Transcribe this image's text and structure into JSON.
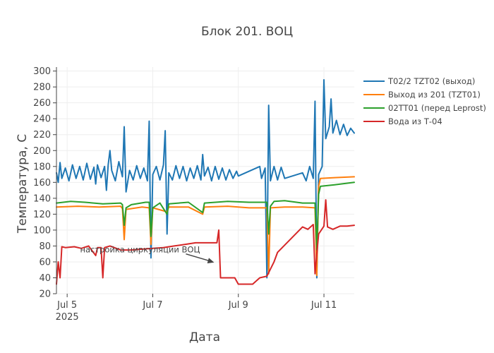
{
  "chart_data": {
    "type": "line",
    "title": "Блок 201. ВОЦ",
    "xlabel": "Дата",
    "ylabel": "Температура, С",
    "xlim": [
      "2025-07-04 18:00",
      "2025-07-11 17:00"
    ],
    "ylim": [
      20,
      305
    ],
    "grid": true,
    "legend_position": "right",
    "x_ticks": [
      {
        "at": "2025-07-05",
        "label": "Jul 5",
        "sublabel": "2025"
      },
      {
        "at": "2025-07-07",
        "label": "Jul 7",
        "sublabel": ""
      },
      {
        "at": "2025-07-09",
        "label": "Jul 9",
        "sublabel": ""
      },
      {
        "at": "2025-07-11",
        "label": "Jul 11",
        "sublabel": ""
      }
    ],
    "y_ticks": [
      20,
      40,
      60,
      80,
      100,
      120,
      140,
      160,
      180,
      200,
      220,
      240,
      260,
      280,
      300
    ],
    "y_tick_labels": [
      "20",
      "40",
      "60",
      "80",
      "100",
      "120",
      "140",
      "160",
      "180",
      "200",
      "220",
      "240",
      "260",
      "280",
      "300"
    ],
    "series": [
      {
        "name": "T02/2 TZT02 (выход)",
        "color": "#1f77b4",
        "points": [
          [
            "2025-07-04 18:00",
            172
          ],
          [
            "2025-07-04 19:00",
            160
          ],
          [
            "2025-07-04 20:00",
            185
          ],
          [
            "2025-07-04 21:00",
            165
          ],
          [
            "2025-07-04 23:00",
            178
          ],
          [
            "2025-07-05 01:00",
            162
          ],
          [
            "2025-07-05 03:00",
            182
          ],
          [
            "2025-07-05 05:00",
            165
          ],
          [
            "2025-07-05 07:00",
            180
          ],
          [
            "2025-07-05 09:00",
            163
          ],
          [
            "2025-07-05 11:00",
            184
          ],
          [
            "2025-07-05 13:00",
            164
          ],
          [
            "2025-07-05 15:00",
            179
          ],
          [
            "2025-07-05 16:00",
            158
          ],
          [
            "2025-07-05 17:00",
            182
          ],
          [
            "2025-07-05 19:00",
            166
          ],
          [
            "2025-07-05 21:00",
            180
          ],
          [
            "2025-07-05 22:00",
            150
          ],
          [
            "2025-07-05 23:00",
            182
          ],
          [
            "2025-07-06 00:00",
            200
          ],
          [
            "2025-07-06 01:00",
            175
          ],
          [
            "2025-07-06 03:00",
            162
          ],
          [
            "2025-07-06 05:00",
            186
          ],
          [
            "2025-07-06 07:00",
            167
          ],
          [
            "2025-07-06 08:00",
            230
          ],
          [
            "2025-07-06 09:00",
            148
          ],
          [
            "2025-07-06 11:00",
            175
          ],
          [
            "2025-07-06 13:00",
            163
          ],
          [
            "2025-07-06 15:00",
            181
          ],
          [
            "2025-07-06 17:00",
            165
          ],
          [
            "2025-07-06 19:00",
            178
          ],
          [
            "2025-07-06 21:00",
            162
          ],
          [
            "2025-07-06 22:00",
            237
          ],
          [
            "2025-07-06 23:00",
            65
          ],
          [
            "2025-07-07 00:00",
            170
          ],
          [
            "2025-07-07 02:00",
            180
          ],
          [
            "2025-07-07 04:00",
            163
          ],
          [
            "2025-07-07 06:00",
            182
          ],
          [
            "2025-07-07 07:00",
            225
          ],
          [
            "2025-07-07 08:00",
            95
          ],
          [
            "2025-07-07 09:00",
            172
          ],
          [
            "2025-07-07 11:00",
            163
          ],
          [
            "2025-07-07 13:00",
            181
          ],
          [
            "2025-07-07 15:00",
            165
          ],
          [
            "2025-07-07 17:00",
            180
          ],
          [
            "2025-07-07 19:00",
            162
          ],
          [
            "2025-07-07 21:00",
            178
          ],
          [
            "2025-07-07 23:00",
            165
          ],
          [
            "2025-07-08 01:00",
            181
          ],
          [
            "2025-07-08 03:00",
            163
          ],
          [
            "2025-07-08 04:00",
            195
          ],
          [
            "2025-07-08 05:00",
            168
          ],
          [
            "2025-07-08 07:00",
            179
          ],
          [
            "2025-07-08 09:00",
            162
          ],
          [
            "2025-07-08 11:00",
            180
          ],
          [
            "2025-07-08 13:00",
            164
          ],
          [
            "2025-07-08 15:00",
            178
          ],
          [
            "2025-07-08 17:00",
            163
          ],
          [
            "2025-07-08 19:00",
            176
          ],
          [
            "2025-07-08 21:00",
            165
          ],
          [
            "2025-07-08 23:00",
            174
          ],
          [
            "2025-07-09 00:00",
            168
          ],
          [
            "2025-07-09 12:00",
            180
          ],
          [
            "2025-07-09 13:00",
            165
          ],
          [
            "2025-07-09 15:00",
            178
          ],
          [
            "2025-07-09 16:00",
            40
          ],
          [
            "2025-07-09 17:00",
            257
          ],
          [
            "2025-07-09 18:00",
            162
          ],
          [
            "2025-07-09 20:00",
            180
          ],
          [
            "2025-07-09 22:00",
            163
          ],
          [
            "2025-07-10 00:00",
            179
          ],
          [
            "2025-07-10 02:00",
            165
          ],
          [
            "2025-07-10 12:00",
            172
          ],
          [
            "2025-07-10 14:00",
            162
          ],
          [
            "2025-07-10 16:00",
            180
          ],
          [
            "2025-07-10 18:00",
            165
          ],
          [
            "2025-07-10 19:00",
            262
          ],
          [
            "2025-07-10 20:00",
            40
          ],
          [
            "2025-07-10 21:00",
            170
          ],
          [
            "2025-07-10 23:00",
            180
          ],
          [
            "2025-07-11 00:00",
            289
          ],
          [
            "2025-07-11 01:00",
            215
          ],
          [
            "2025-07-11 03:00",
            230
          ],
          [
            "2025-07-11 04:00",
            265
          ],
          [
            "2025-07-11 05:00",
            222
          ],
          [
            "2025-07-11 07:00",
            238
          ],
          [
            "2025-07-11 09:00",
            220
          ],
          [
            "2025-07-11 11:00",
            233
          ],
          [
            "2025-07-11 13:00",
            219
          ],
          [
            "2025-07-11 15:00",
            228
          ],
          [
            "2025-07-11 17:00",
            222
          ]
        ]
      },
      {
        "name": "Выход из 201 (TZT01)",
        "color": "#ff7f0e",
        "points": [
          [
            "2025-07-04 18:00",
            129
          ],
          [
            "2025-07-05 06:00",
            130
          ],
          [
            "2025-07-05 18:00",
            129
          ],
          [
            "2025-07-06 06:00",
            130
          ],
          [
            "2025-07-06 07:00",
            127
          ],
          [
            "2025-07-06 08:00",
            88
          ],
          [
            "2025-07-06 09:00",
            126
          ],
          [
            "2025-07-06 18:00",
            129
          ],
          [
            "2025-07-06 22:00",
            128
          ],
          [
            "2025-07-06 23:00",
            82
          ],
          [
            "2025-07-07 00:00",
            128
          ],
          [
            "2025-07-07 08:00",
            123
          ],
          [
            "2025-07-07 09:00",
            129
          ],
          [
            "2025-07-07 20:00",
            129
          ],
          [
            "2025-07-08 04:00",
            120
          ],
          [
            "2025-07-08 05:00",
            129
          ],
          [
            "2025-07-08 18:00",
            130
          ],
          [
            "2025-07-09 06:00",
            128
          ],
          [
            "2025-07-09 16:00",
            128
          ],
          [
            "2025-07-09 17:00",
            45
          ],
          [
            "2025-07-09 18:00",
            128
          ],
          [
            "2025-07-10 02:00",
            129
          ],
          [
            "2025-07-10 12:00",
            129
          ],
          [
            "2025-07-10 19:00",
            128
          ],
          [
            "2025-07-10 20:00",
            43
          ],
          [
            "2025-07-10 21:00",
            155
          ],
          [
            "2025-07-10 22:00",
            165
          ],
          [
            "2025-07-11 06:00",
            166
          ],
          [
            "2025-07-11 17:00",
            167
          ]
        ]
      },
      {
        "name": "02TT01 (перед Leprost)",
        "color": "#2ca02c",
        "points": [
          [
            "2025-07-04 18:00",
            134
          ],
          [
            "2025-07-05 02:00",
            136
          ],
          [
            "2025-07-05 10:00",
            135
          ],
          [
            "2025-07-05 20:00",
            133
          ],
          [
            "2025-07-06 06:00",
            134
          ],
          [
            "2025-07-06 07:00",
            132
          ],
          [
            "2025-07-06 08:00",
            106
          ],
          [
            "2025-07-06 09:00",
            128
          ],
          [
            "2025-07-06 12:00",
            132
          ],
          [
            "2025-07-06 20:00",
            135
          ],
          [
            "2025-07-06 22:00",
            135
          ],
          [
            "2025-07-06 23:00",
            92
          ],
          [
            "2025-07-07 00:00",
            128
          ],
          [
            "2025-07-07 04:00",
            134
          ],
          [
            "2025-07-07 08:00",
            120
          ],
          [
            "2025-07-07 09:00",
            133
          ],
          [
            "2025-07-07 20:00",
            135
          ],
          [
            "2025-07-08 04:00",
            122
          ],
          [
            "2025-07-08 05:00",
            134
          ],
          [
            "2025-07-08 18:00",
            136
          ],
          [
            "2025-07-09 06:00",
            135
          ],
          [
            "2025-07-09 16:00",
            135
          ],
          [
            "2025-07-09 17:00",
            95
          ],
          [
            "2025-07-09 18:00",
            130
          ],
          [
            "2025-07-09 20:00",
            136
          ],
          [
            "2025-07-10 02:00",
            137
          ],
          [
            "2025-07-10 12:00",
            134
          ],
          [
            "2025-07-10 19:00",
            134
          ],
          [
            "2025-07-10 20:00",
            75
          ],
          [
            "2025-07-10 21:00",
            145
          ],
          [
            "2025-07-10 22:00",
            155
          ],
          [
            "2025-07-11 06:00",
            157
          ],
          [
            "2025-07-11 17:00",
            160
          ]
        ]
      },
      {
        "name": "Вода из Т-04",
        "color": "#d62728",
        "points": [
          [
            "2025-07-04 18:00",
            32
          ],
          [
            "2025-07-04 19:00",
            60
          ],
          [
            "2025-07-04 20:00",
            40
          ],
          [
            "2025-07-04 21:00",
            79
          ],
          [
            "2025-07-04 23:00",
            78
          ],
          [
            "2025-07-05 04:00",
            79
          ],
          [
            "2025-07-05 08:00",
            77
          ],
          [
            "2025-07-05 12:00",
            80
          ],
          [
            "2025-07-05 16:00",
            68
          ],
          [
            "2025-07-05 17:00",
            78
          ],
          [
            "2025-07-05 19:00",
            78
          ],
          [
            "2025-07-05 20:00",
            40
          ],
          [
            "2025-07-05 21:00",
            78
          ],
          [
            "2025-07-06 00:00",
            80
          ],
          [
            "2025-07-06 06:00",
            75
          ],
          [
            "2025-07-06 12:00",
            75
          ],
          [
            "2025-07-06 18:00",
            76
          ],
          [
            "2025-07-07 00:00",
            77
          ],
          [
            "2025-07-07 06:00",
            78
          ],
          [
            "2025-07-07 12:00",
            80
          ],
          [
            "2025-07-07 18:00",
            82
          ],
          [
            "2025-07-08 00:00",
            84
          ],
          [
            "2025-07-08 06:00",
            84
          ],
          [
            "2025-07-08 12:00",
            84
          ],
          [
            "2025-07-08 13:00",
            100
          ],
          [
            "2025-07-08 14:00",
            40
          ],
          [
            "2025-07-08 18:00",
            40
          ],
          [
            "2025-07-08 22:00",
            40
          ],
          [
            "2025-07-09 00:00",
            32
          ],
          [
            "2025-07-09 08:00",
            32
          ],
          [
            "2025-07-09 12:00",
            40
          ],
          [
            "2025-07-09 16:00",
            42
          ],
          [
            "2025-07-09 20:00",
            60
          ],
          [
            "2025-07-09 22:00",
            72
          ],
          [
            "2025-07-10 12:00",
            104
          ],
          [
            "2025-07-10 15:00",
            101
          ],
          [
            "2025-07-10 18:00",
            107
          ],
          [
            "2025-07-10 19:00",
            45
          ],
          [
            "2025-07-10 21:00",
            95
          ],
          [
            "2025-07-11 00:00",
            105
          ],
          [
            "2025-07-11 01:00",
            138
          ],
          [
            "2025-07-11 02:00",
            104
          ],
          [
            "2025-07-11 05:00",
            101
          ],
          [
            "2025-07-11 09:00",
            105
          ],
          [
            "2025-07-11 13:00",
            105
          ],
          [
            "2025-07-11 17:00",
            106
          ]
        ]
      }
    ],
    "annotation": {
      "text": "настройка циркуляции ВОЦ",
      "x": "2025-07-08 12:00",
      "y": 62
    }
  }
}
